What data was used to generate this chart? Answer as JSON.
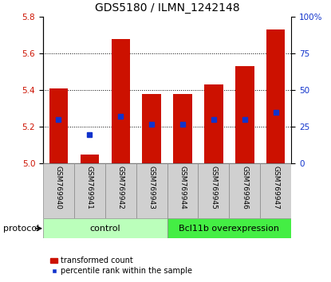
{
  "title": "GDS5180 / ILMN_1242148",
  "samples": [
    "GSM769940",
    "GSM769941",
    "GSM769942",
    "GSM769943",
    "GSM769944",
    "GSM769945",
    "GSM769946",
    "GSM769947"
  ],
  "transformed_count": [
    5.41,
    5.05,
    5.68,
    5.38,
    5.38,
    5.43,
    5.53,
    5.73
  ],
  "percentile_rank": [
    30,
    20,
    32,
    27,
    27,
    30,
    30,
    35
  ],
  "ylim_left": [
    5.0,
    5.8
  ],
  "ylim_right": [
    0,
    100
  ],
  "yticks_left": [
    5.0,
    5.2,
    5.4,
    5.6,
    5.8
  ],
  "yticks_right": [
    0,
    25,
    50,
    75,
    100
  ],
  "bar_color": "#cc1100",
  "marker_color": "#1133cc",
  "groups": [
    {
      "label": "control",
      "start": 0,
      "end": 4,
      "color": "#bbffbb"
    },
    {
      "label": "Bcl11b overexpression",
      "start": 4,
      "end": 8,
      "color": "#44ee44"
    }
  ],
  "protocol_label": "protocol",
  "legend_bar_label": "transformed count",
  "legend_marker_label": "percentile rank within the sample",
  "title_fontsize": 10,
  "tick_fontsize": 7.5,
  "sample_fontsize": 6.5,
  "group_fontsize": 8,
  "legend_fontsize": 7
}
